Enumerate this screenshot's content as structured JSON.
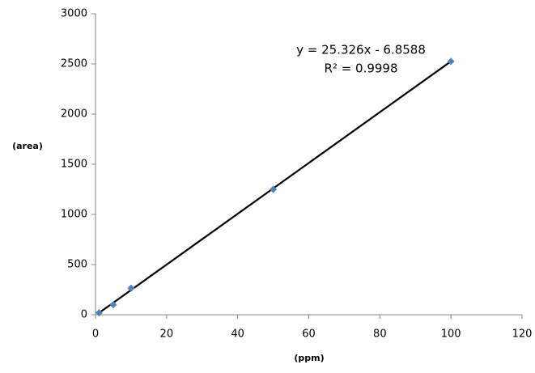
{
  "chart_data": {
    "type": "scatter",
    "x": [
      1,
      5,
      10,
      50,
      100
    ],
    "values": [
      20,
      100,
      265,
      1250,
      2525
    ],
    "color": "#4f81bd",
    "xlabel": "(ppm)",
    "ylabel": "(area)",
    "xlim": [
      0,
      120
    ],
    "xticks": [
      0,
      20,
      40,
      60,
      80,
      100,
      120
    ],
    "ylim": [
      0,
      3000
    ],
    "yticks": [
      0,
      500,
      1000,
      1500,
      2000,
      2500,
      3000
    ],
    "grid": false,
    "trendline": {
      "slope": 25.326,
      "intercept": -6.8588,
      "label": "y = 25.326x - 6.8588",
      "r2": 0.9998,
      "r2_label": "R² = 0.9998",
      "color": "#000000"
    }
  }
}
